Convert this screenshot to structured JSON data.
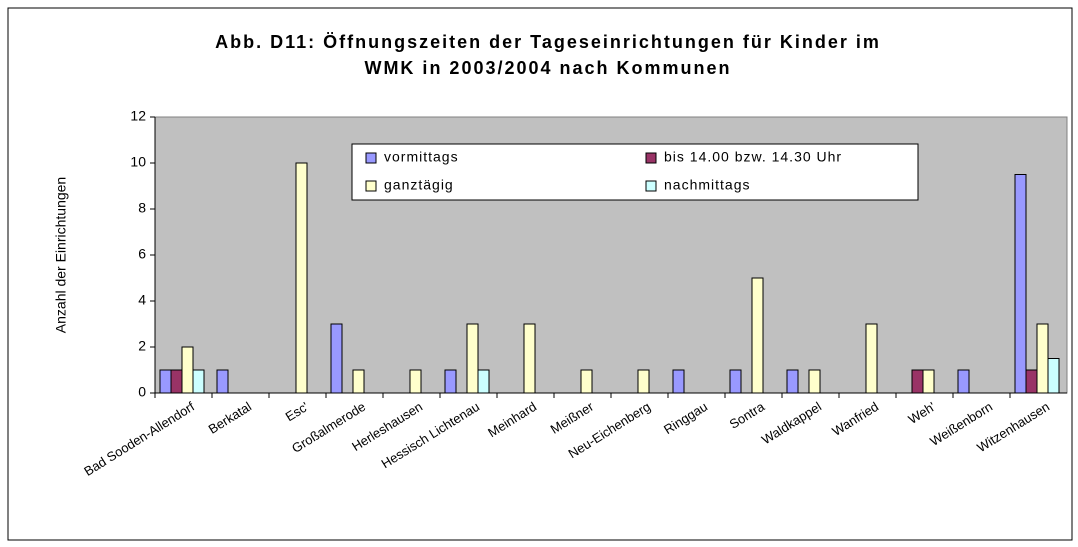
{
  "chart_data": {
    "type": "bar",
    "title": [
      "Abb. D11: Öffnungszeiten der Tageseinrichtungen für Kinder im",
      "WMK in 2003/2004 nach Kommunen"
    ],
    "y_label": "Anzahl der Einrichtungen",
    "categories": [
      "Bad Sooden-Allendorf",
      "Berkatal",
      "Esc'",
      "Großalmerode",
      "Herleshausen",
      "Hessisch Lichtenau",
      "Meinhard",
      "Meißner",
      "Neu-Eichenberg",
      "Ringgau",
      "Sontra",
      "Waldkappel",
      "Wanfried",
      "Weh'",
      "Weißenborn",
      "Witzenhausen"
    ],
    "series": [
      {
        "name": "vormittags",
        "color": "#9999ff",
        "values": [
          1,
          1,
          0,
          3,
          0,
          1,
          0,
          0,
          0,
          1,
          1,
          1,
          0,
          0,
          1,
          9.5
        ]
      },
      {
        "name": "bis 14.00 bzw. 14.30 Uhr",
        "color": "#993366",
        "values": [
          1,
          0,
          0,
          0,
          0,
          0,
          0,
          0,
          0,
          0,
          0,
          0,
          0,
          1,
          0,
          1
        ]
      },
      {
        "name": "ganztägig",
        "color": "#ffffcc",
        "values": [
          2,
          0,
          10,
          1,
          1,
          3,
          3,
          1,
          1,
          0,
          5,
          1,
          3,
          1,
          0,
          3
        ]
      },
      {
        "name": "nachmittags",
        "color": "#ccffff",
        "values": [
          1,
          0,
          0,
          0,
          0,
          1,
          0,
          0,
          0,
          0,
          0,
          0,
          0,
          0,
          0,
          1.5
        ]
      }
    ],
    "ylim": [
      0,
      12
    ],
    "yticks": [
      0,
      2,
      4,
      6,
      8,
      10,
      12
    ],
    "plot_background": "#c0c0c0"
  }
}
